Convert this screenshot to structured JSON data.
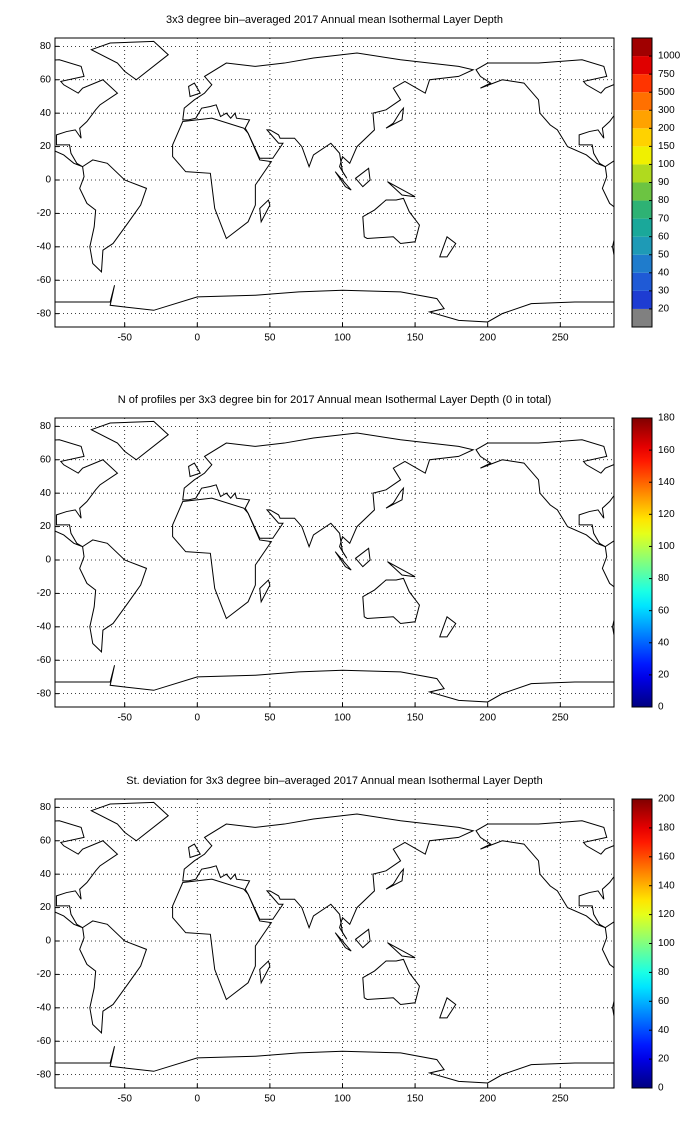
{
  "chart_data": [
    {
      "type": "map",
      "title": "3x3 degree bin–averaged 2017 Annual mean Isothermal Layer Depth",
      "xlim": [
        -98,
        287
      ],
      "ylim": [
        -88,
        85
      ],
      "xticks": [
        -50,
        0,
        50,
        100,
        150,
        200,
        250
      ],
      "yticks": [
        -80,
        -60,
        -40,
        -20,
        0,
        20,
        40,
        60,
        80
      ],
      "grid": true,
      "colorbar": {
        "kind": "discrete",
        "ticks": [
          20,
          30,
          40,
          50,
          60,
          70,
          80,
          90,
          100,
          150,
          200,
          300,
          500,
          750,
          1000
        ],
        "colors": [
          "#808080",
          "#1e3cd2",
          "#1f5ad6",
          "#1f7ccc",
          "#1e9ab6",
          "#1aa89a",
          "#2eb274",
          "#6cc442",
          "#b0da1e",
          "#f0f000",
          "#ffd200",
          "#ffa200",
          "#ff7000",
          "#ff3400",
          "#e00000",
          "#a00000"
        ]
      }
    },
    {
      "type": "map",
      "title": "N of profiles per 3x3 degree bin for 2017 Annual mean Isothermal Layer Depth  (0 in total)",
      "xlim": [
        -98,
        287
      ],
      "ylim": [
        -88,
        85
      ],
      "xticks": [
        -50,
        0,
        50,
        100,
        150,
        200,
        250
      ],
      "yticks": [
        -80,
        -60,
        -40,
        -20,
        0,
        20,
        40,
        60,
        80
      ],
      "grid": true,
      "colorbar": {
        "kind": "continuous",
        "colormap": "jet",
        "lim": [
          0,
          180
        ],
        "ticks": [
          0,
          20,
          40,
          60,
          80,
          100,
          120,
          140,
          160,
          180
        ]
      }
    },
    {
      "type": "map",
      "title": "St. deviation for 3x3 degree bin–averaged 2017 Annual mean Isothermal Layer Depth",
      "xlim": [
        -98,
        287
      ],
      "ylim": [
        -88,
        85
      ],
      "xticks": [
        -50,
        0,
        50,
        100,
        150,
        200,
        250
      ],
      "yticks": [
        -80,
        -60,
        -40,
        -20,
        0,
        20,
        40,
        60,
        80
      ],
      "grid": true,
      "colorbar": {
        "kind": "continuous",
        "colormap": "jet",
        "lim": [
          0,
          200
        ],
        "ticks": [
          0,
          20,
          40,
          60,
          80,
          100,
          120,
          140,
          160,
          180,
          200
        ]
      }
    }
  ]
}
